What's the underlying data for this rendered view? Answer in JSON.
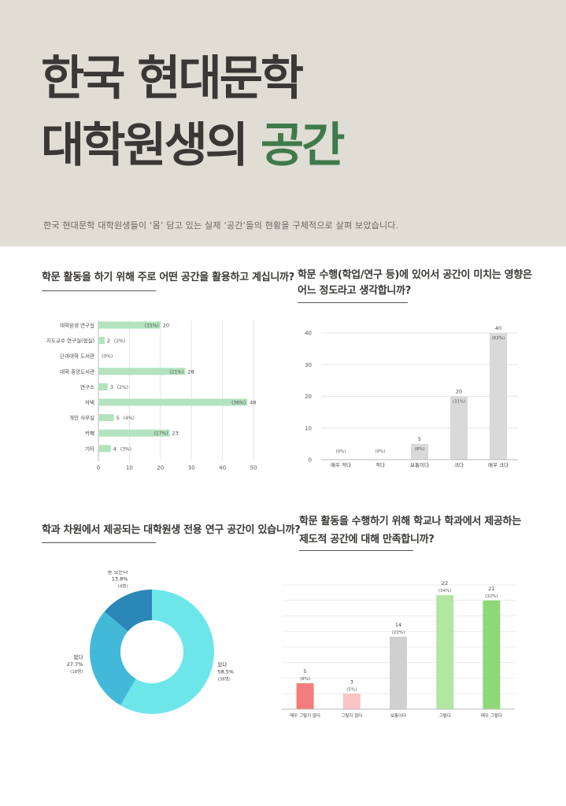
{
  "header": {
    "title_line1": "한국 현대문학",
    "title_line2_prefix": "대학원생의 ",
    "title_line2_accent": "공간",
    "subtitle": "한국 현대문학 대학원생들이 ‘몸’ 담고 있는 실제 ‘공간’들의 현황을 구체적으로 살펴 보았습니다."
  },
  "questions": {
    "q1": "학문 활동을 하기 위해 주로 어떤 공간을 활용하고 계십니까?",
    "q2_line1": "학문 수행(학업/연구 등)에 있어서 공간이 미치는 영향은",
    "q2_line2": "어느 정도라고 생각합니까?",
    "q3": "학과 차원에서 제공되는 대학원생 전용 연구 공간이 있습니까?",
    "q4_line1": "학문 활동을 수행하기 위해 학교나 학과에서 제공하는",
    "q4_line2": "제도적 공간에 대해 만족합니까?"
  },
  "chart_data": [
    {
      "type": "bar",
      "orientation": "horizontal",
      "categories": [
        "대학원생 연구실",
        "지도교수 연구실(협실)",
        "단과대학 도서관",
        "대학 중앙도서관",
        "연구소",
        "자택",
        "개인 사무실",
        "카페",
        "기타"
      ],
      "values": [
        20,
        2,
        0,
        28,
        3,
        48,
        5,
        23,
        4
      ],
      "pct_labels": [
        "(15%)",
        "(2%)",
        "(0%)",
        "(21%)",
        "(2%)",
        "(36%)",
        "(4%)",
        "(17%)",
        "(3%)"
      ],
      "xlim": [
        0,
        50
      ],
      "xticks": [
        0,
        10,
        20,
        30,
        40,
        50
      ],
      "grid": true,
      "color": "#b3e3bf"
    },
    {
      "type": "bar",
      "categories": [
        "매우 적다",
        "적다",
        "보통이다",
        "크다",
        "매우 크다"
      ],
      "values": [
        0,
        0,
        5,
        20,
        40
      ],
      "pct_labels": [
        "(0%)",
        "(0%)",
        "(8%)",
        "(31%)",
        "(62%)"
      ],
      "ylim": [
        0,
        40
      ],
      "yticks": [
        0,
        10,
        20,
        30,
        40
      ],
      "grid": true,
      "color": "#d9d9d9"
    },
    {
      "type": "pie",
      "donut": true,
      "labels": [
        "있다",
        "없다",
        "잘 모른다"
      ],
      "values": [
        38,
        18,
        9
      ],
      "percent_labels": [
        "58.5%",
        "27.7%",
        "13.8%"
      ],
      "count_labels": [
        "(38명)",
        "(18명)",
        "(9명)"
      ],
      "colors": [
        "#6de6ea",
        "#42b9d9",
        "#2a87b8"
      ]
    },
    {
      "type": "bar",
      "categories": [
        "매우 그렇지 않다",
        "그렇지 않다",
        "보통이다",
        "그렇다",
        "매우 그렇다"
      ],
      "values": [
        5,
        3,
        14,
        22,
        21
      ],
      "pct_labels": [
        "(8%)",
        "(5%)",
        "(22%)",
        "(34%)",
        "(32%)"
      ],
      "ylim": [
        0,
        24
      ],
      "grid": true,
      "colors": [
        "#f47c7c",
        "#f9c4c4",
        "#d0d0d0",
        "#b2e6a3",
        "#8dd878"
      ]
    }
  ]
}
